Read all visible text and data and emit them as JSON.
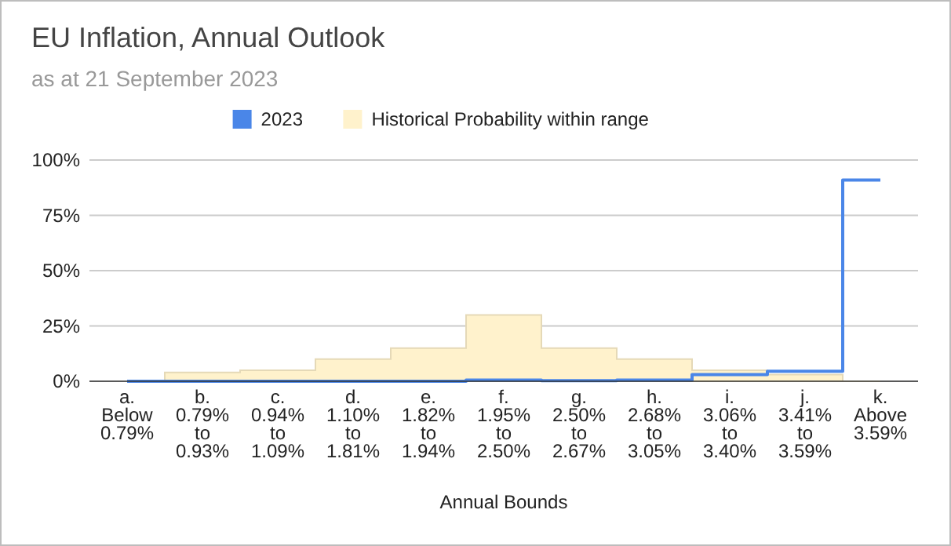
{
  "chart_data": {
    "type": "step",
    "title": "EU Inflation, Annual Outlook",
    "subtitle": "as at 21 September 2023",
    "xlabel": "Annual Bounds",
    "categories": [
      "a.\nBelow\n0.79%",
      "b.\n0.79%\nto\n0.93%",
      "c.\n0.94%\nto\n1.09%",
      "d.\n1.10%\nto\n1.81%",
      "e.\n1.82%\nto\n1.94%",
      "f.\n1.95%\nto\n2.50%",
      "g.\n2.50%\nto\n2.67%",
      "h.\n2.68%\nto\n3.05%",
      "i.\n3.06%\nto\n3.40%",
      "j.\n3.41%\nto\n3.59%",
      "k.\nAbove\n3.59%"
    ],
    "series": [
      {
        "name": "2023",
        "type": "step",
        "color": "#4a86e8",
        "values": [
          0,
          0,
          0,
          0,
          0,
          0.5,
          0.3,
          0.5,
          3,
          4.5,
          91
        ]
      },
      {
        "name": "Historical Probability within range",
        "type": "area",
        "color": "#fff2cc",
        "values": [
          0,
          4,
          5,
          10,
          15,
          30,
          15,
          10,
          5,
          3,
          0
        ]
      }
    ],
    "ylim": [
      0,
      100
    ],
    "yticks": [
      {
        "value": 0,
        "label": "0%"
      },
      {
        "value": 25,
        "label": "25%"
      },
      {
        "value": 50,
        "label": "50%"
      },
      {
        "value": 75,
        "label": "75%"
      },
      {
        "value": 100,
        "label": "100%"
      }
    ],
    "grid": "y",
    "legend": "top"
  }
}
